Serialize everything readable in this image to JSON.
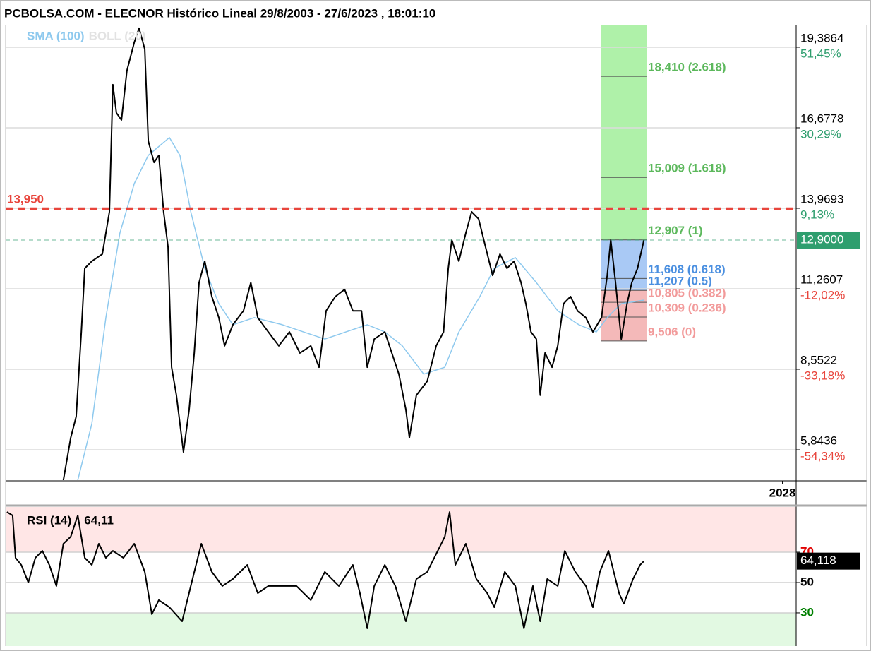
{
  "chart_data": [
    {
      "type": "line",
      "title": "PCBOLSA.COM - ELECNOR Histórico Lineal 29/8/2003 - 27/6/2023 , 18:01:10",
      "xlim": [
        2003.66,
        2028.43
      ],
      "xticks": [
        2028
      ],
      "ylim": [
        4.822,
        20.146
      ],
      "yticks": [
        {
          "value": 19.3864,
          "label": "19,3864"
        },
        {
          "value": 16.6778,
          "label": "16,6778"
        },
        {
          "value": 13.9693,
          "label": "13,9693"
        },
        {
          "value": 11.2607,
          "label": "11,2607"
        },
        {
          "value": 8.5522,
          "label": "8,5522"
        },
        {
          "value": 5.8436,
          "label": "5,8436"
        }
      ],
      "y2lim": [
        -62.32,
        57.38
      ],
      "y2ticks": [
        {
          "value": 51.45,
          "label": "51,45%"
        },
        {
          "value": 30.29,
          "label": "30,29%"
        },
        {
          "value": 9.13,
          "label": "9,13%"
        },
        {
          "value": -12.02,
          "label": "-12,02%"
        },
        {
          "value": -33.18,
          "label": "-33,18%"
        },
        {
          "value": -54.34,
          "label": "-54,34%"
        }
      ],
      "grid": true,
      "series": [
        {
          "color": "#000000",
          "x": [
            2005.47,
            2005.7,
            2005.87,
            2006.03,
            2006.14,
            2006.36,
            2006.69,
            2006.91,
            2007.02,
            2007.13,
            2007.29,
            2007.46,
            2007.69,
            2007.84,
            2008.02,
            2008.13,
            2008.31,
            2008.46,
            2008.61,
            2008.75,
            2008.86,
            2009.01,
            2009.23,
            2009.41,
            2009.57,
            2009.72,
            2009.9,
            2010.12,
            2010.34,
            2010.52,
            2010.78,
            2011.11,
            2011.34,
            2011.56,
            2011.89,
            2012.22,
            2012.55,
            2012.88,
            2013.22,
            2013.48,
            2013.7,
            2013.99,
            2014.28,
            2014.54,
            2014.81,
            2014.99,
            2015.21,
            2015.54,
            2015.76,
            2015.98,
            2016.2,
            2016.31,
            2016.53,
            2016.87,
            2017.15,
            2017.38,
            2017.53,
            2017.64,
            2017.86,
            2018.08,
            2018.26,
            2018.48,
            2018.7,
            2018.92,
            2019.15,
            2019.37,
            2019.59,
            2019.81,
            2019.96,
            2020.12,
            2020.29,
            2020.41,
            2020.56,
            2020.78,
            2020.96,
            2021.14,
            2021.36,
            2021.58,
            2021.84,
            2022.06,
            2022.33,
            2022.51,
            2022.62,
            2022.77,
            2022.95,
            2023.13,
            2023.28,
            2023.46,
            2023.66
          ],
          "values": [
            4.82,
            6.25,
            6.96,
            9.81,
            11.95,
            12.19,
            12.43,
            13.85,
            18.13,
            17.18,
            16.94,
            18.6,
            19.55,
            20.03,
            19.32,
            16.23,
            15.51,
            15.75,
            13.85,
            12.66,
            8.62,
            7.68,
            5.77,
            7.2,
            9.1,
            11.47,
            12.19,
            11.0,
            10.29,
            9.34,
            10.05,
            10.52,
            11.47,
            10.29,
            9.81,
            9.34,
            9.81,
            9.1,
            9.34,
            8.62,
            10.52,
            11.0,
            11.24,
            10.52,
            10.52,
            8.62,
            9.57,
            9.81,
            9.1,
            8.39,
            7.2,
            6.25,
            7.68,
            8.15,
            9.34,
            9.81,
            11.95,
            12.9,
            12.19,
            13.14,
            13.85,
            13.61,
            12.66,
            11.71,
            12.43,
            11.95,
            12.19,
            11.47,
            10.76,
            9.81,
            9.57,
            7.68,
            9.1,
            8.62,
            9.34,
            10.76,
            11.0,
            10.52,
            10.29,
            9.81,
            10.29,
            11.71,
            12.9,
            11.47,
            9.57,
            10.76,
            11.47,
            11.95,
            12.9
          ]
        },
        {
          "name": "SMA (100)",
          "color": "#8ec9ee",
          "x": [
            2005.92,
            2006.36,
            2006.8,
            2007.24,
            2007.69,
            2008.13,
            2008.79,
            2009.12,
            2009.46,
            2009.9,
            2010.34,
            2010.78,
            2011.45,
            2012.33,
            2012.99,
            2013.66,
            2014.32,
            2014.99,
            2015.54,
            2016.09,
            2016.76,
            2017.42,
            2017.86,
            2018.52,
            2018.97,
            2019.63,
            2020.29,
            2020.96,
            2021.62,
            2022.17,
            2022.51,
            2022.95,
            2023.66
          ],
          "values": [
            4.82,
            6.72,
            10.29,
            13.14,
            14.8,
            15.75,
            16.35,
            15.75,
            13.85,
            11.95,
            10.76,
            10.05,
            10.29,
            10.05,
            9.81,
            9.57,
            9.81,
            10.05,
            9.81,
            9.34,
            8.39,
            8.62,
            9.81,
            11.0,
            11.95,
            12.31,
            11.47,
            10.52,
            10.05,
            9.81,
            10.29,
            10.76,
            10.88
          ]
        }
      ],
      "bollinger": {
        "name": "BOLL (20)",
        "color": "#e2e2e2"
      },
      "fibonacci": [
        {
          "value": 18.41,
          "label": "18,410 (2.618)",
          "color": "#5cb85c"
        },
        {
          "value": 15.009,
          "label": "15,009 (1.618)",
          "color": "#5cb85c"
        },
        {
          "value": 12.907,
          "label": "12,907 (1)",
          "color": "#5cb85c"
        },
        {
          "value": 11.608,
          "label": "11,608 (0.618)",
          "color": "#4a8fe0"
        },
        {
          "value": 11.207,
          "label": "11,207 (0.5)",
          "color": "#4a8fe0"
        },
        {
          "value": 10.805,
          "label": "10,805 (0.382)",
          "color": "#f29a9a"
        },
        {
          "value": 10.309,
          "label": "10,309 (0.236)",
          "color": "#f29a9a"
        },
        {
          "value": 9.506,
          "label": "9,506 (0)",
          "color": "#f29a9a"
        }
      ],
      "reference_lines": [
        {
          "value": 13.95,
          "label": "13,950",
          "color": "#e8453c",
          "style": "dashed"
        },
        {
          "value": 12.9,
          "label": "12,9000",
          "color": "#2e9e6e",
          "style": "box"
        }
      ]
    },
    {
      "type": "line",
      "title": "RSI (14)",
      "value_label": {
        "value": 64.11,
        "label": "64,11"
      },
      "last_value": {
        "value": 64.118,
        "label": "64,118"
      },
      "xlim": [
        2003.66,
        2028.43
      ],
      "ylim": [
        8.1,
        99.8
      ],
      "yticks": [
        70,
        50,
        30
      ],
      "ytick_colors": [
        "#e00000",
        "#000000",
        "#008000"
      ],
      "zones": [
        {
          "from": 70,
          "to": 99.8,
          "color": "#ffe6e6"
        },
        {
          "from": 8.1,
          "to": 30,
          "color": "#e2f9e2"
        }
      ],
      "series": [
        {
          "color": "#000000",
          "x": [
            2003.7,
            2003.88,
            2003.97,
            2004.15,
            2004.37,
            2004.59,
            2004.81,
            2005.03,
            2005.25,
            2005.47,
            2005.7,
            2005.92,
            2006.14,
            2006.36,
            2006.58,
            2006.8,
            2007.02,
            2007.35,
            2007.69,
            2008.02,
            2008.24,
            2008.46,
            2008.79,
            2009.19,
            2009.46,
            2009.79,
            2010.12,
            2010.45,
            2010.78,
            2011.23,
            2011.56,
            2011.89,
            2012.33,
            2012.77,
            2013.22,
            2013.66,
            2014.1,
            2014.54,
            2014.76,
            2014.99,
            2015.21,
            2015.54,
            2015.87,
            2016.2,
            2016.53,
            2016.87,
            2017.2,
            2017.42,
            2017.57,
            2017.75,
            2018.08,
            2018.41,
            2018.75,
            2018.97,
            2019.3,
            2019.63,
            2019.9,
            2020.18,
            2020.41,
            2020.63,
            2020.96,
            2021.18,
            2021.51,
            2021.84,
            2022.06,
            2022.28,
            2022.55,
            2022.88,
            2023.03,
            2023.32,
            2023.54,
            2023.66
          ],
          "values": [
            96.5,
            94.2,
            66.3,
            61.6,
            50.0,
            66.3,
            70.9,
            61.6,
            47.7,
            75.6,
            80.2,
            94.2,
            66.3,
            61.6,
            75.6,
            66.3,
            70.9,
            66.3,
            75.6,
            57.0,
            29.1,
            38.4,
            33.7,
            24.4,
            47.7,
            75.6,
            57.0,
            47.7,
            52.3,
            61.6,
            43.0,
            47.7,
            47.7,
            47.7,
            38.4,
            57.0,
            47.7,
            61.6,
            43.0,
            19.8,
            47.7,
            61.6,
            47.7,
            24.4,
            52.3,
            57.0,
            70.9,
            80.2,
            96.5,
            61.6,
            75.6,
            52.3,
            43.0,
            33.7,
            57.0,
            47.7,
            19.8,
            47.7,
            24.4,
            52.3,
            47.7,
            70.9,
            57.0,
            47.7,
            33.7,
            57.0,
            70.9,
            43.0,
            36.0,
            52.3,
            61.6,
            64.1
          ]
        }
      ]
    }
  ]
}
